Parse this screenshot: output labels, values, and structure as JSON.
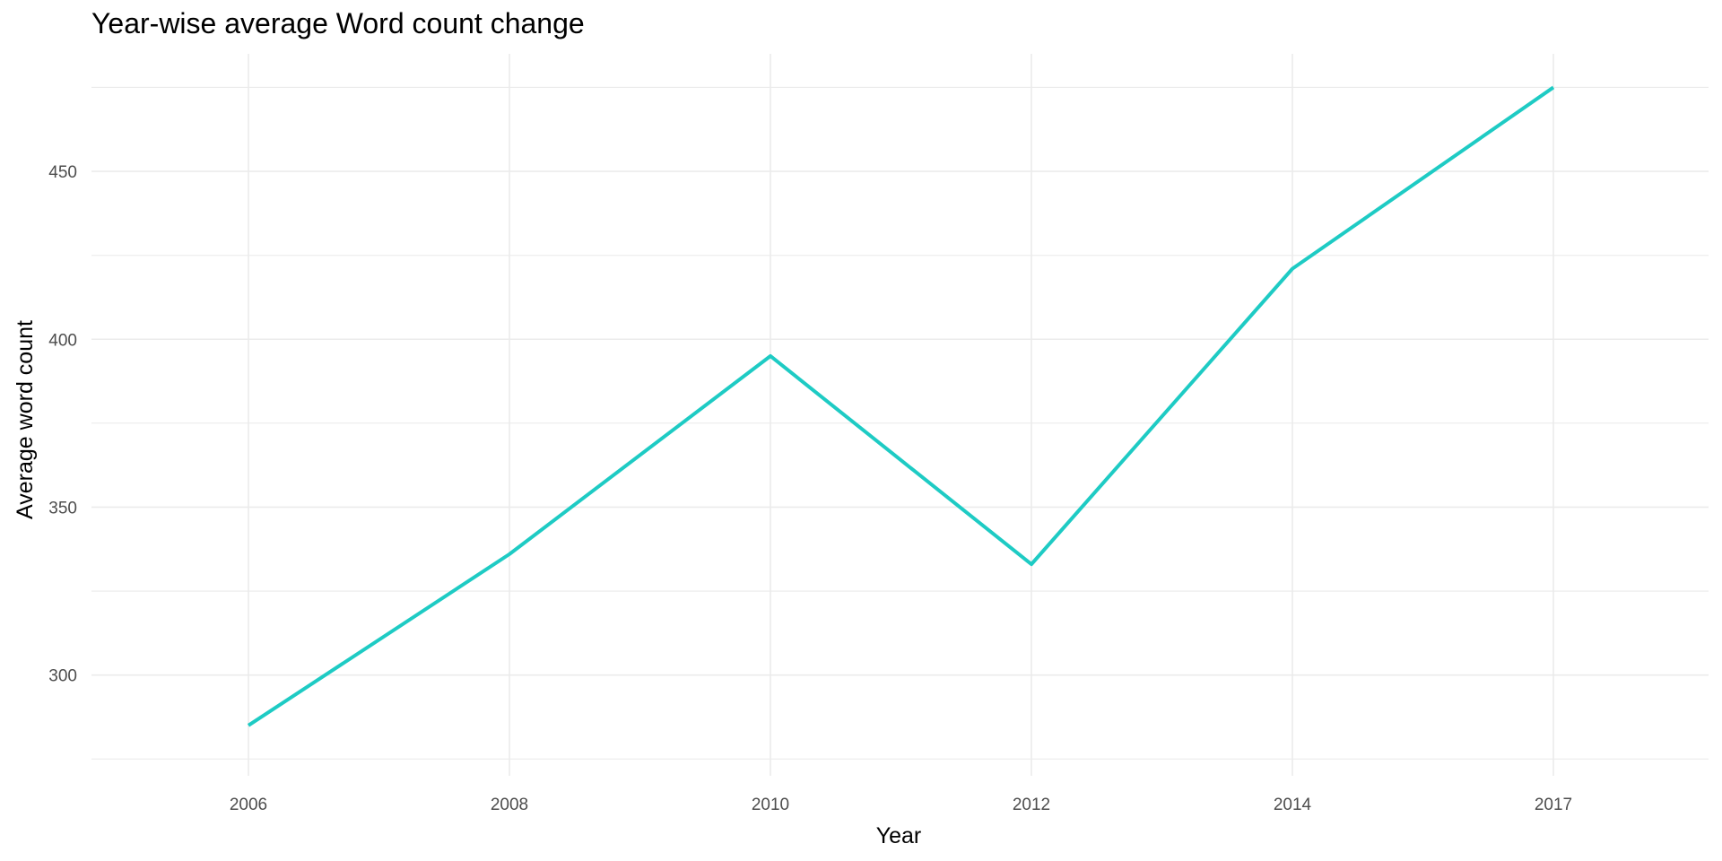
{
  "chart_data": {
    "type": "line",
    "title": "Year-wise average Word count change",
    "xlabel": "Year",
    "ylabel": "Average word count",
    "categories": [
      "2006",
      "2008",
      "2010",
      "2012",
      "2014",
      "2017"
    ],
    "series": [
      {
        "values": [
          285,
          336,
          395,
          333,
          421,
          475
        ]
      }
    ],
    "yticks": [
      300,
      350,
      400,
      450
    ],
    "ylim": [
      270,
      485
    ],
    "grid": true,
    "legend": "none",
    "line_color": "#1ecbc4",
    "grid_color": "#ebebeb"
  }
}
